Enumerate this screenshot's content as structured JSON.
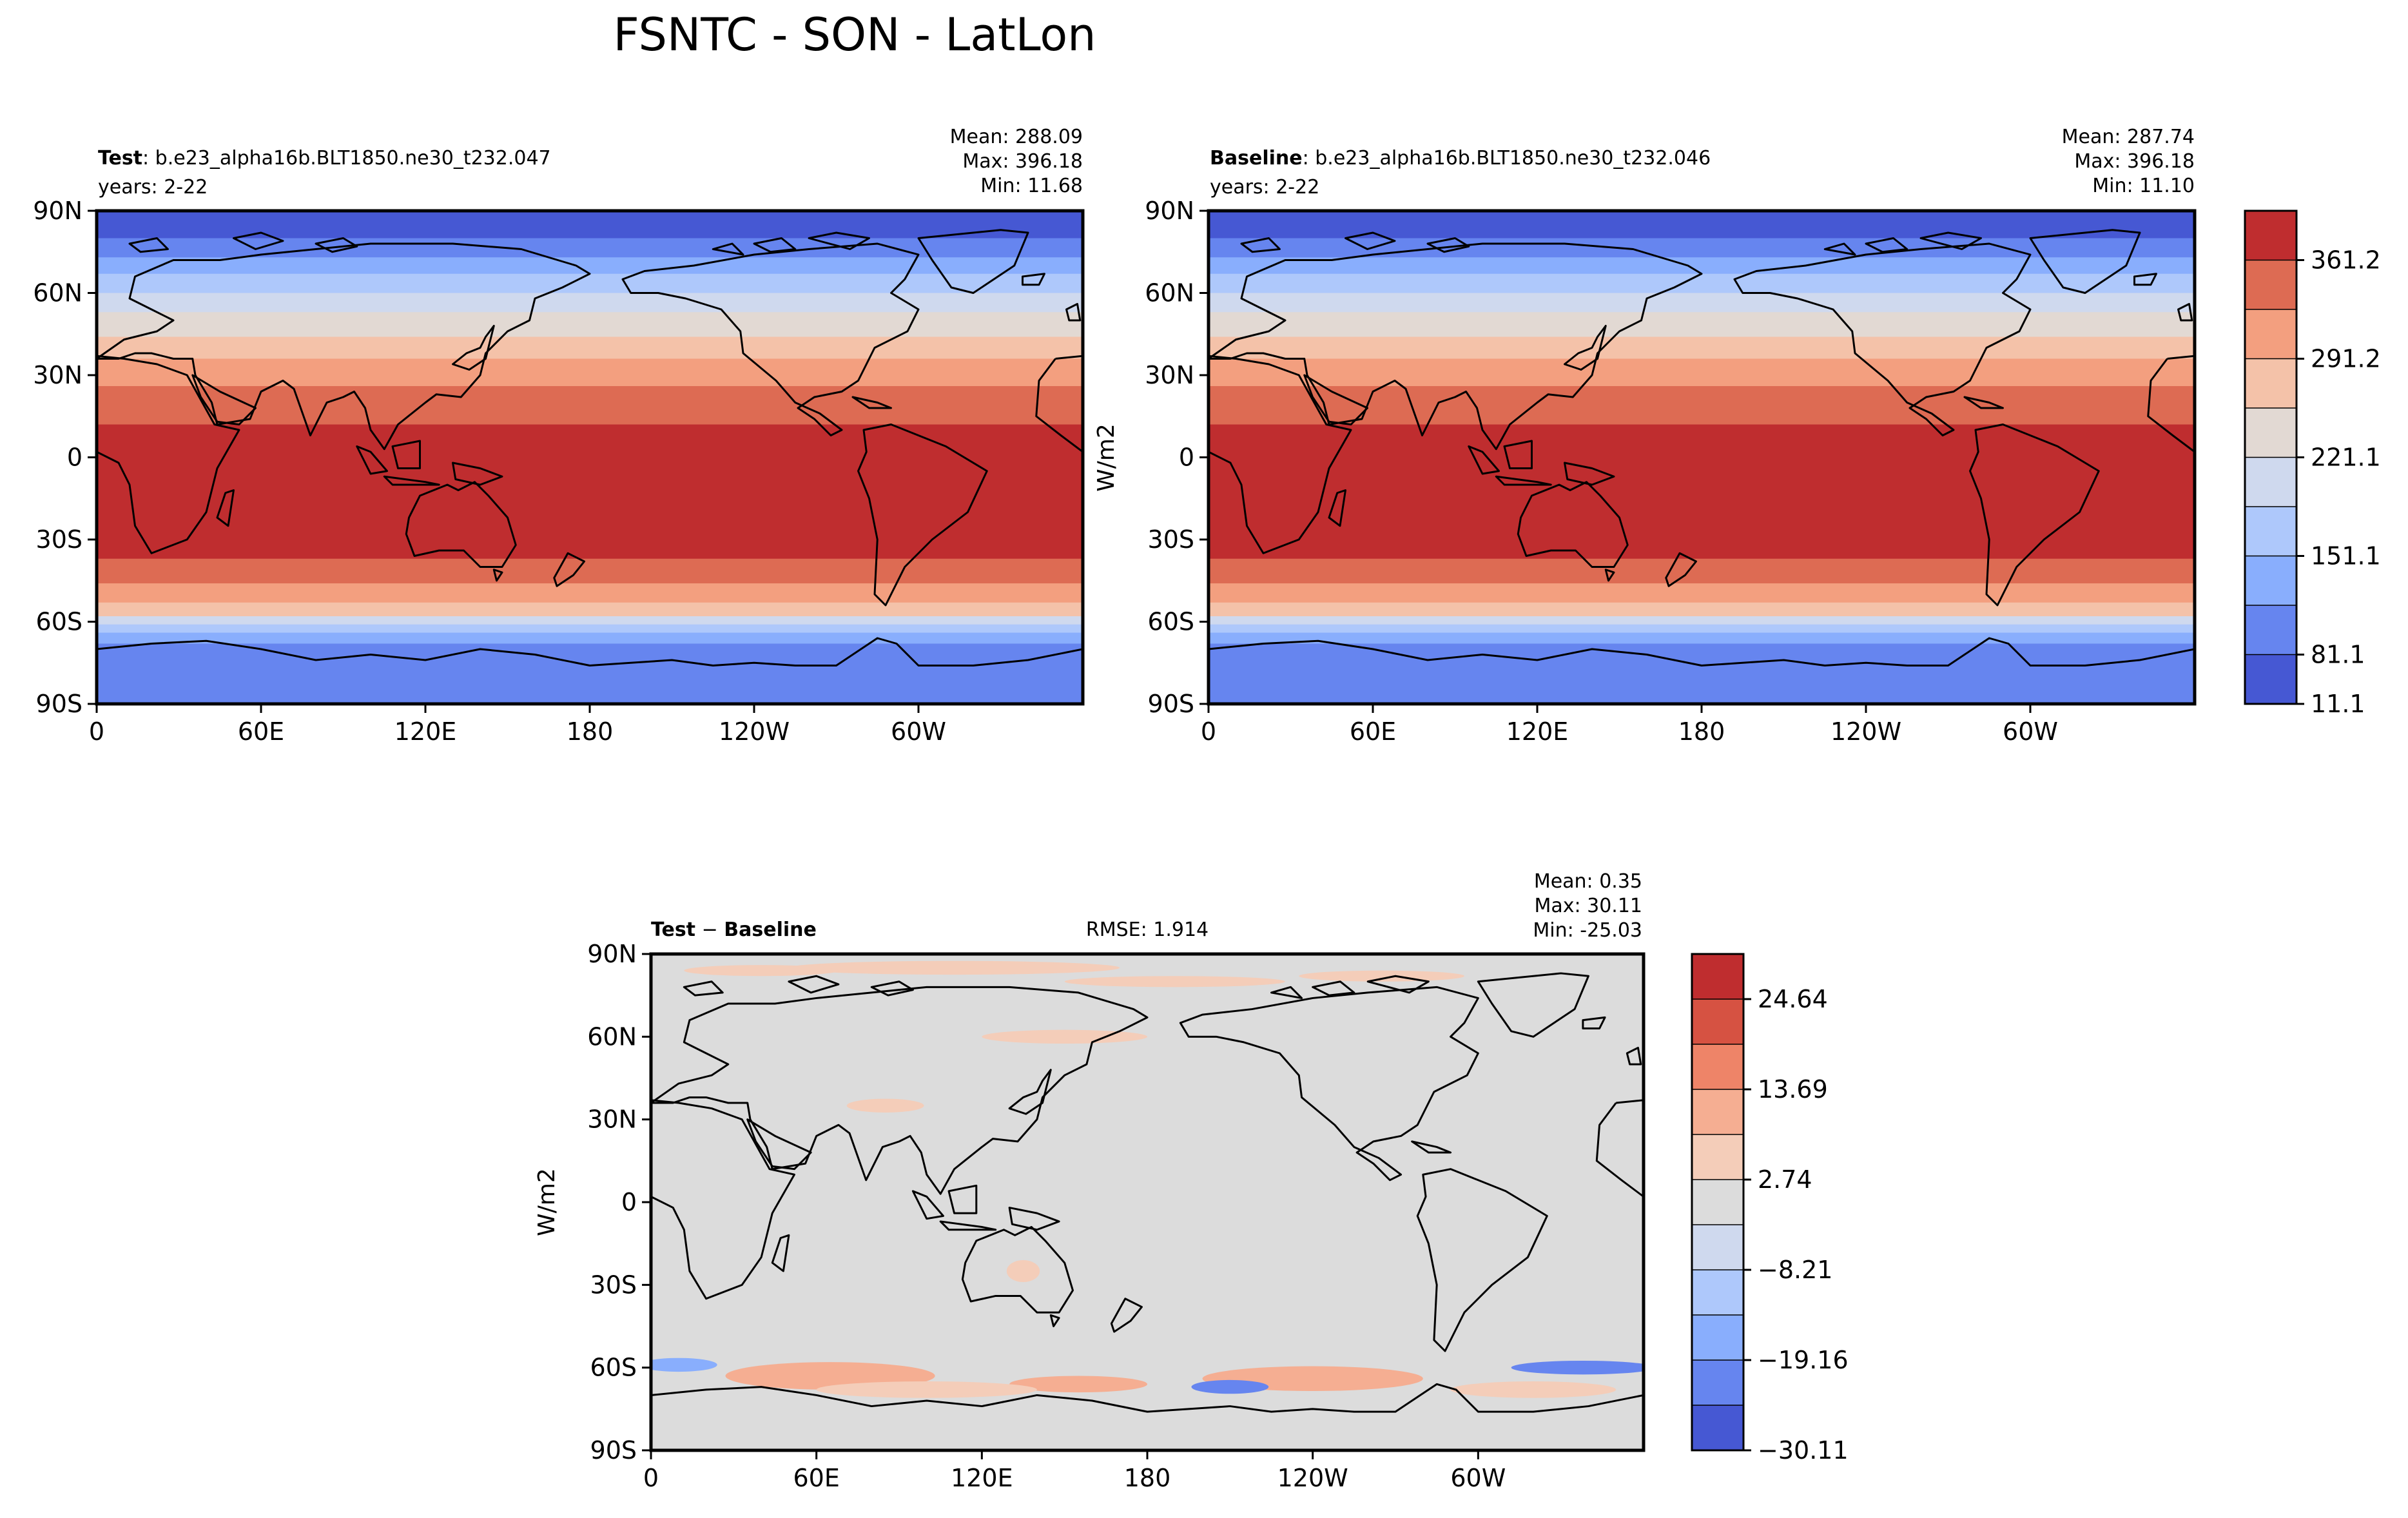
{
  "figure": {
    "title": "FSNTC - SON - LatLon"
  },
  "chart_data": [
    {
      "id": "test",
      "type": "heatmap",
      "projection": "PlateCarree lat-lon contour map",
      "title_bold": "Test",
      "title_rest": ": b.e23_alpha16b.BLT1850.ne30_t232.047",
      "years": "years: 2-22",
      "stats": {
        "mean": "Mean: 288.09",
        "max": "Max: 396.18",
        "min": "Min: 11.68"
      },
      "x_ticks": [
        "0",
        "60E",
        "120E",
        "180",
        "120W",
        "60W"
      ],
      "y_ticks": [
        "90N",
        "60N",
        "30N",
        "0",
        "30S",
        "60S",
        "90S"
      ],
      "xlim": [
        0,
        360
      ],
      "ylim": [
        -90,
        90
      ],
      "units": ""
    },
    {
      "id": "baseline",
      "type": "heatmap",
      "projection": "PlateCarree lat-lon contour map",
      "title_bold": "Baseline",
      "title_rest": ": b.e23_alpha16b.BLT1850.ne30_t232.046",
      "years": "years: 2-22",
      "stats": {
        "mean": "Mean: 287.74",
        "max": "Max: 396.18",
        "min": "Min: 11.10"
      },
      "x_ticks": [
        "0",
        "60E",
        "120E",
        "180",
        "120W",
        "60W"
      ],
      "y_ticks": [
        "90N",
        "60N",
        "30N",
        "0",
        "30S",
        "60S",
        "90S"
      ],
      "xlim": [
        0,
        360
      ],
      "ylim": [
        -90,
        90
      ],
      "units": "W/m2",
      "colorbar": {
        "ticks": [
          "361.2",
          "291.2",
          "221.1",
          "151.1",
          "81.1",
          "11.1"
        ],
        "levels": 10,
        "colors": [
          "#4658d3",
          "#6685ef",
          "#89aefd",
          "#aec8fb",
          "#cfd9ee",
          "#e2d9d3",
          "#f4c2a9",
          "#f39f7f",
          "#dd6b53",
          "#bf2d2f"
        ]
      }
    },
    {
      "id": "difference",
      "type": "heatmap",
      "projection": "PlateCarree lat-lon contour map",
      "title_bold": "Test",
      "title_op": " − ",
      "title_bold2": "Baseline",
      "rmse": "RMSE: 1.914",
      "stats": {
        "mean": "Mean:  0.35",
        "max": "Max: 30.11",
        "min": "Min: -25.03"
      },
      "x_ticks": [
        "0",
        "60E",
        "120E",
        "180",
        "120W",
        "60W"
      ],
      "y_ticks": [
        "90N",
        "60N",
        "30N",
        "0",
        "30S",
        "60S",
        "90S"
      ],
      "xlim": [
        0,
        360
      ],
      "ylim": [
        -90,
        90
      ],
      "units": "W/m2",
      "colorbar": {
        "ticks": [
          "24.64",
          "13.69",
          "2.74",
          "−8.21",
          "−19.16",
          "−30.11"
        ],
        "levels": 11,
        "colors": [
          "#4658d3",
          "#6685ef",
          "#89aefd",
          "#aec8fb",
          "#cfd9ee",
          "#dcdcdc",
          "#f4cdb9",
          "#f5ae92",
          "#ee8468",
          "#d65242",
          "#bf2d2f"
        ]
      }
    }
  ],
  "field_bands": [
    {
      "lat_top": 90,
      "lat_bottom": 80,
      "color": "#4658d3"
    },
    {
      "lat_top": 80,
      "lat_bottom": 73,
      "color": "#6685ef"
    },
    {
      "lat_top": 73,
      "lat_bottom": 67,
      "color": "#89aefd"
    },
    {
      "lat_top": 67,
      "lat_bottom": 60,
      "color": "#aec8fb"
    },
    {
      "lat_top": 60,
      "lat_bottom": 53,
      "color": "#cfd9ee"
    },
    {
      "lat_top": 53,
      "lat_bottom": 44,
      "color": "#e2d9d3"
    },
    {
      "lat_top": 44,
      "lat_bottom": 36,
      "color": "#f4c2a9"
    },
    {
      "lat_top": 36,
      "lat_bottom": 26,
      "color": "#f39f7f"
    },
    {
      "lat_top": 26,
      "lat_bottom": 12,
      "color": "#dd6b53"
    },
    {
      "lat_top": 12,
      "lat_bottom": -37,
      "color": "#bf2d2f"
    },
    {
      "lat_top": -37,
      "lat_bottom": -46,
      "color": "#dd6b53"
    },
    {
      "lat_top": -46,
      "lat_bottom": -53,
      "color": "#f39f7f"
    },
    {
      "lat_top": -53,
      "lat_bottom": -58,
      "color": "#f4c2a9"
    },
    {
      "lat_top": -58,
      "lat_bottom": -61,
      "color": "#cfd9ee"
    },
    {
      "lat_top": -61,
      "lat_bottom": -64,
      "color": "#aec8fb"
    },
    {
      "lat_top": -64,
      "lat_bottom": -68,
      "color": "#89aefd"
    },
    {
      "lat_top": -68,
      "lat_bottom": -90,
      "color": "#6685ef"
    }
  ],
  "diff_patches": [
    {
      "lon": 70,
      "lat": -63,
      "rlon": 22,
      "rlat": 3.5,
      "color": "#d65242"
    },
    {
      "lon": 65,
      "lat": -63,
      "rlon": 38,
      "rlat": 5,
      "color": "#f5ae92"
    },
    {
      "lon": 235,
      "lat": -64,
      "rlon": 24,
      "rlat": 3,
      "color": "#ee8468"
    },
    {
      "lon": 240,
      "lat": -64,
      "rlon": 40,
      "rlat": 4.5,
      "color": "#f5ae92"
    },
    {
      "lon": 155,
      "lat": -66,
      "rlon": 25,
      "rlat": 3,
      "color": "#f5ae92"
    },
    {
      "lon": 10,
      "lat": -59,
      "rlon": 14,
      "rlat": 2.5,
      "color": "#89aefd"
    },
    {
      "lon": 210,
      "lat": -67,
      "rlon": 14,
      "rlat": 2.5,
      "color": "#6685ef"
    },
    {
      "lon": 338,
      "lat": -60,
      "rlon": 26,
      "rlat": 2.5,
      "color": "#6685ef"
    },
    {
      "lon": 320,
      "lat": -68,
      "rlon": 30,
      "rlat": 3,
      "color": "#f4cdb9"
    },
    {
      "lon": 100,
      "lat": -68,
      "rlon": 40,
      "rlat": 3,
      "color": "#f4cdb9"
    },
    {
      "lon": 110,
      "lat": 85,
      "rlon": 60,
      "rlat": 2.5,
      "color": "#f4cdb9"
    },
    {
      "lon": 40,
      "lat": 84,
      "rlon": 28,
      "rlat": 2,
      "color": "#f4cdb9"
    },
    {
      "lon": 190,
      "lat": 80,
      "rlon": 40,
      "rlat": 2,
      "color": "#f4cdb9"
    },
    {
      "lon": 265,
      "lat": 82,
      "rlon": 30,
      "rlat": 2,
      "color": "#f4cdb9"
    },
    {
      "lon": 85,
      "lat": 35,
      "rlon": 14,
      "rlat": 2.5,
      "color": "#f4cdb9"
    },
    {
      "lon": 135,
      "lat": -25,
      "rlon": 6,
      "rlat": 4,
      "color": "#f4cdb9"
    },
    {
      "lon": 150,
      "lat": 60,
      "rlon": 30,
      "rlat": 2.5,
      "color": "#f4cdb9"
    }
  ]
}
